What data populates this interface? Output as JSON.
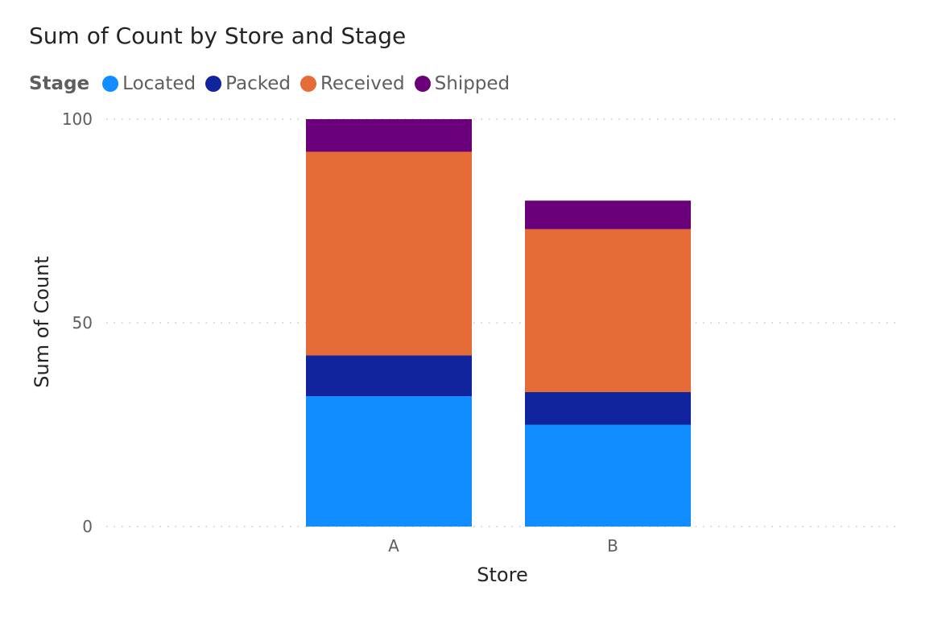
{
  "chart_data": {
    "type": "bar",
    "stacked": true,
    "title": "Sum of Count by Store and Stage",
    "legend_title": "Stage",
    "legend_position": "top-left",
    "xlabel": "Store",
    "ylabel": "Sum of Count",
    "categories": [
      "A",
      "B"
    ],
    "ylim": [
      0,
      100
    ],
    "yticks": [
      0,
      50,
      100
    ],
    "grid": true,
    "series": [
      {
        "name": "Located",
        "color": "#118DFF",
        "values": [
          32,
          25
        ]
      },
      {
        "name": "Packed",
        "color": "#12239E",
        "values": [
          10,
          8
        ]
      },
      {
        "name": "Received",
        "color": "#E66C37",
        "values": [
          50,
          40
        ]
      },
      {
        "name": "Shipped",
        "color": "#6B007B",
        "values": [
          8,
          7
        ]
      }
    ]
  }
}
